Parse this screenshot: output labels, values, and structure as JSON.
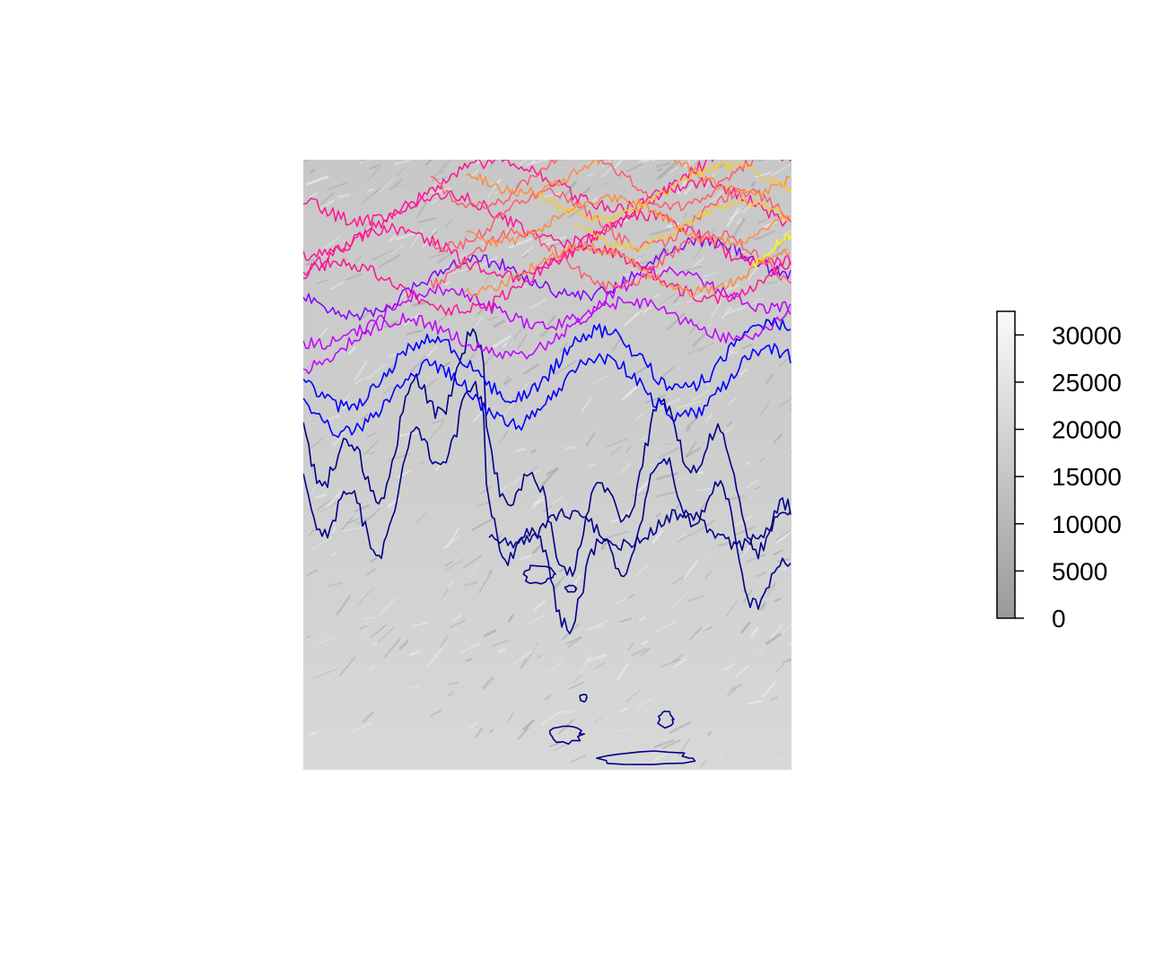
{
  "map": {
    "type": "hillshade-contour-raster",
    "background_color": "#d6d6d6"
  },
  "legend": {
    "ticks": [
      "30000",
      "25000",
      "20000",
      "15000",
      "10000",
      "5000",
      "0"
    ],
    "tick_values": [
      30000,
      25000,
      20000,
      15000,
      10000,
      5000,
      0
    ],
    "range": [
      0,
      32500
    ],
    "gradient_colors": [
      "#999999",
      "#fafafa"
    ]
  },
  "contour_colors": [
    "#00008b",
    "#0000ff",
    "#7f00ff",
    "#bf00ff",
    "#ff1493",
    "#ff5a6e",
    "#ff8c3c",
    "#ffc81e",
    "#ffff00"
  ]
}
